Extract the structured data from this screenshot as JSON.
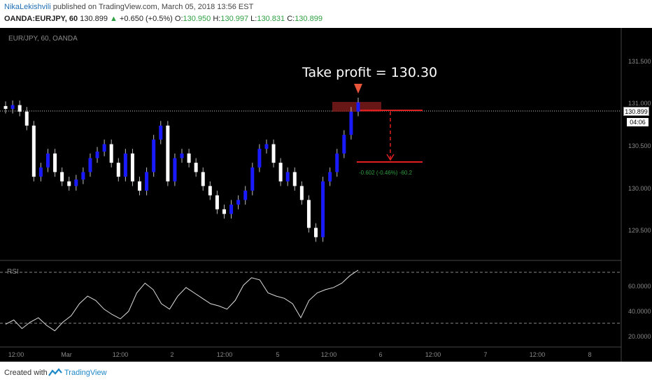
{
  "header": {
    "author": "NikaLekishvili",
    "published_text": "published on TradingView.com, March 05, 2018 13:56 EST",
    "symbol": "OANDA:EURJPY, 60",
    "last": "130.899",
    "change_arrow": "▲",
    "change": "+0.650 (+0.5%)",
    "o_label": "O:",
    "o_value": "130.950",
    "h_label": "H:",
    "h_value": "130.997",
    "l_label": "L:",
    "l_value": "130.831",
    "c_label": "C:",
    "c_value": "130.899"
  },
  "chart": {
    "symbol_label": "EUR/JPY, 60, OANDA",
    "rsi_label": "RSI",
    "annotation": "Take profit = 130.30",
    "pnl_label": "-0.602 (-0.46%) -60.2",
    "last_price_box": "130.899",
    "countdown_box": "04:06",
    "price_ticks": [
      "131.500",
      "131.000",
      "130.500",
      "130.000",
      "129.500"
    ],
    "rsi_ticks": [
      "60.0000",
      "40.0000",
      "20.0000"
    ],
    "time_ticks": [
      "12:00",
      "Mar",
      "12:00",
      "2",
      "12:00",
      "5",
      "12:00",
      "6",
      "12:00",
      "7",
      "12:00",
      "8"
    ],
    "colors": {
      "bull": "#1a1aff",
      "bear": "#ffffff",
      "target_line": "#e02020",
      "arrow": "#e8553a",
      "highlight": "#7a1a1a",
      "pnl": "#2e9b3c"
    }
  },
  "chart_data": {
    "type": "candlestick",
    "x": [
      "12:00",
      "Mar",
      "12:00",
      "2",
      "12:00",
      "5",
      "12:00",
      "6",
      "12:00",
      "7",
      "12:00",
      "8"
    ],
    "ylim": [
      129.25,
      131.75
    ],
    "horizontal_lines": [
      130.899,
      130.3
    ],
    "closes": [
      130.88,
      130.92,
      130.85,
      130.7,
      130.15,
      130.25,
      130.4,
      130.2,
      130.1,
      130.05,
      130.12,
      130.2,
      130.35,
      130.42,
      130.5,
      130.3,
      130.15,
      130.4,
      130.1,
      130.0,
      130.2,
      130.55,
      130.7,
      130.1,
      130.35,
      130.4,
      130.3,
      130.2,
      130.05,
      129.95,
      129.8,
      129.75,
      129.85,
      129.9,
      130.0,
      130.25,
      130.45,
      130.5,
      130.3,
      130.1,
      130.2,
      130.05,
      129.9,
      129.6,
      129.5,
      130.1,
      130.2,
      130.4,
      130.6,
      130.85,
      130.95
    ],
    "rsi": {
      "levels": [
        70,
        30
      ],
      "ticks": [
        60,
        40,
        20
      ],
      "values": [
        26,
        30,
        22,
        28,
        32,
        25,
        20,
        28,
        34,
        45,
        52,
        48,
        40,
        35,
        31,
        38,
        55,
        64,
        58,
        45,
        40,
        52,
        60,
        55,
        50,
        45,
        43,
        40,
        48,
        62,
        69,
        67,
        55,
        52,
        50,
        45,
        32,
        48,
        55,
        58,
        60,
        64,
        71,
        76
      ]
    }
  }
}
